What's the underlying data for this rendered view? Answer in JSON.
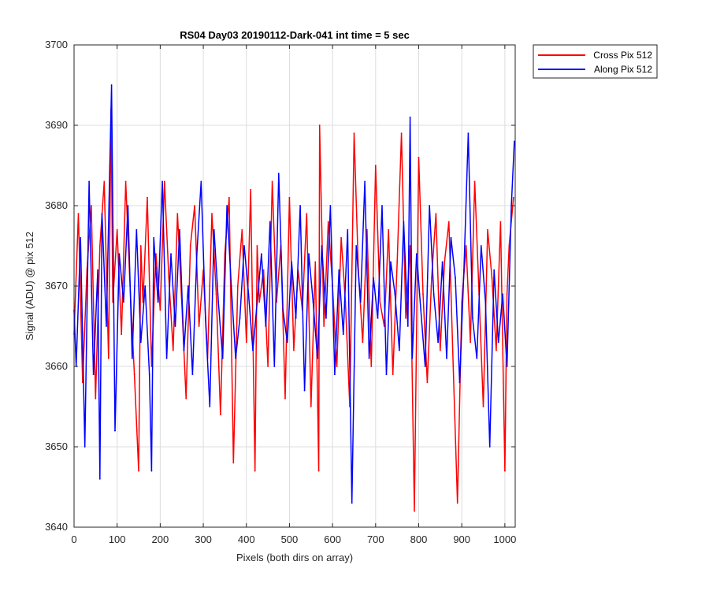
{
  "chart_data": {
    "type": "line",
    "title": "RS04 Day03 20190112-Dark-041 int time = 5 sec",
    "xlabel": "Pixels (both dirs on array)",
    "ylabel": "Signal (ADU) @ pix 512",
    "xlim": [
      0,
      1024
    ],
    "ylim": [
      3640,
      3700
    ],
    "xticks": [
      0,
      100,
      200,
      300,
      400,
      500,
      600,
      700,
      800,
      900,
      1000
    ],
    "yticks": [
      3640,
      3650,
      3660,
      3670,
      3680,
      3690,
      3700
    ],
    "grid": true,
    "legend_position": "outside-top-right",
    "series": [
      {
        "name": "Cross Pix 512",
        "color": "#ff0000",
        "x": [
          0,
          10,
          20,
          30,
          40,
          50,
          60,
          70,
          80,
          86,
          90,
          100,
          110,
          120,
          130,
          140,
          150,
          155,
          160,
          170,
          180,
          190,
          200,
          210,
          220,
          230,
          240,
          250,
          260,
          270,
          280,
          290,
          300,
          310,
          320,
          330,
          340,
          350,
          360,
          370,
          380,
          390,
          400,
          410,
          420,
          425,
          430,
          440,
          450,
          460,
          470,
          480,
          490,
          500,
          510,
          520,
          530,
          540,
          550,
          560,
          568,
          570,
          580,
          590,
          600,
          610,
          620,
          630,
          640,
          650,
          660,
          670,
          680,
          690,
          700,
          710,
          720,
          730,
          740,
          750,
          760,
          770,
          780,
          790,
          800,
          810,
          820,
          830,
          840,
          850,
          860,
          870,
          880,
          890,
          900,
          910,
          920,
          930,
          940,
          950,
          960,
          970,
          980,
          990,
          1000,
          1005,
          1010,
          1020
        ],
        "y": [
          3664,
          3679,
          3658,
          3672,
          3680,
          3656,
          3675,
          3683,
          3661,
          3692,
          3668,
          3677,
          3664,
          3683,
          3670,
          3659,
          3647,
          3675,
          3668,
          3681,
          3660,
          3674,
          3667,
          3683,
          3671,
          3662,
          3679,
          3668,
          3656,
          3675,
          3680,
          3665,
          3672,
          3661,
          3679,
          3669,
          3654,
          3674,
          3681,
          3648,
          3670,
          3677,
          3663,
          3682,
          3647,
          3675,
          3668,
          3672,
          3660,
          3683,
          3668,
          3675,
          3656,
          3681,
          3662,
          3672,
          3667,
          3679,
          3655,
          3673,
          3647,
          3690,
          3665,
          3678,
          3670,
          3660,
          3676,
          3668,
          3655,
          3689,
          3672,
          3663,
          3677,
          3660,
          3685,
          3668,
          3665,
          3677,
          3659,
          3673,
          3689,
          3666,
          3675,
          3642,
          3686,
          3669,
          3658,
          3671,
          3679,
          3662,
          3673,
          3678,
          3660,
          3643,
          3668,
          3675,
          3663,
          3683,
          3669,
          3655,
          3677,
          3671,
          3662,
          3678,
          3647,
          3669,
          3675,
          3681
        ]
      },
      {
        "name": "Along Pix 512",
        "color": "#0000ff",
        "x": [
          0,
          5,
          15,
          25,
          35,
          45,
          55,
          60,
          65,
          75,
          87,
          95,
          105,
          115,
          125,
          135,
          145,
          155,
          165,
          175,
          180,
          185,
          195,
          205,
          215,
          225,
          235,
          245,
          255,
          265,
          275,
          285,
          295,
          305,
          315,
          325,
          335,
          345,
          355,
          365,
          375,
          385,
          395,
          405,
          415,
          435,
          445,
          455,
          465,
          475,
          485,
          495,
          505,
          515,
          525,
          535,
          545,
          555,
          565,
          575,
          585,
          595,
          605,
          615,
          625,
          635,
          645,
          655,
          665,
          675,
          685,
          695,
          705,
          715,
          725,
          735,
          745,
          755,
          765,
          775,
          780,
          785,
          795,
          805,
          815,
          825,
          835,
          845,
          855,
          865,
          875,
          885,
          895,
          905,
          915,
          925,
          935,
          945,
          955,
          965,
          975,
          985,
          995,
          1005,
          1015,
          1022
        ],
        "y": [
          3667,
          3660,
          3676,
          3650,
          3683,
          3659,
          3672,
          3646,
          3679,
          3665,
          3695,
          3652,
          3674,
          3668,
          3680,
          3661,
          3677,
          3663,
          3670,
          3659,
          3647,
          3676,
          3668,
          3683,
          3661,
          3674,
          3665,
          3677,
          3662,
          3670,
          3659,
          3674,
          3683,
          3666,
          3655,
          3677,
          3668,
          3661,
          3680,
          3670,
          3661,
          3666,
          3675,
          3669,
          3662,
          3674,
          3665,
          3678,
          3660,
          3684,
          3667,
          3663,
          3673,
          3666,
          3680,
          3657,
          3674,
          3668,
          3661,
          3675,
          3666,
          3680,
          3659,
          3672,
          3664,
          3677,
          3643,
          3675,
          3668,
          3683,
          3661,
          3671,
          3666,
          3680,
          3659,
          3673,
          3669,
          3662,
          3678,
          3665,
          3691,
          3661,
          3674,
          3667,
          3660,
          3680,
          3669,
          3663,
          3673,
          3661,
          3676,
          3671,
          3658,
          3672,
          3689,
          3666,
          3661,
          3675,
          3668,
          3650,
          3672,
          3663,
          3669,
          3660,
          3680,
          3688
        ]
      }
    ]
  }
}
